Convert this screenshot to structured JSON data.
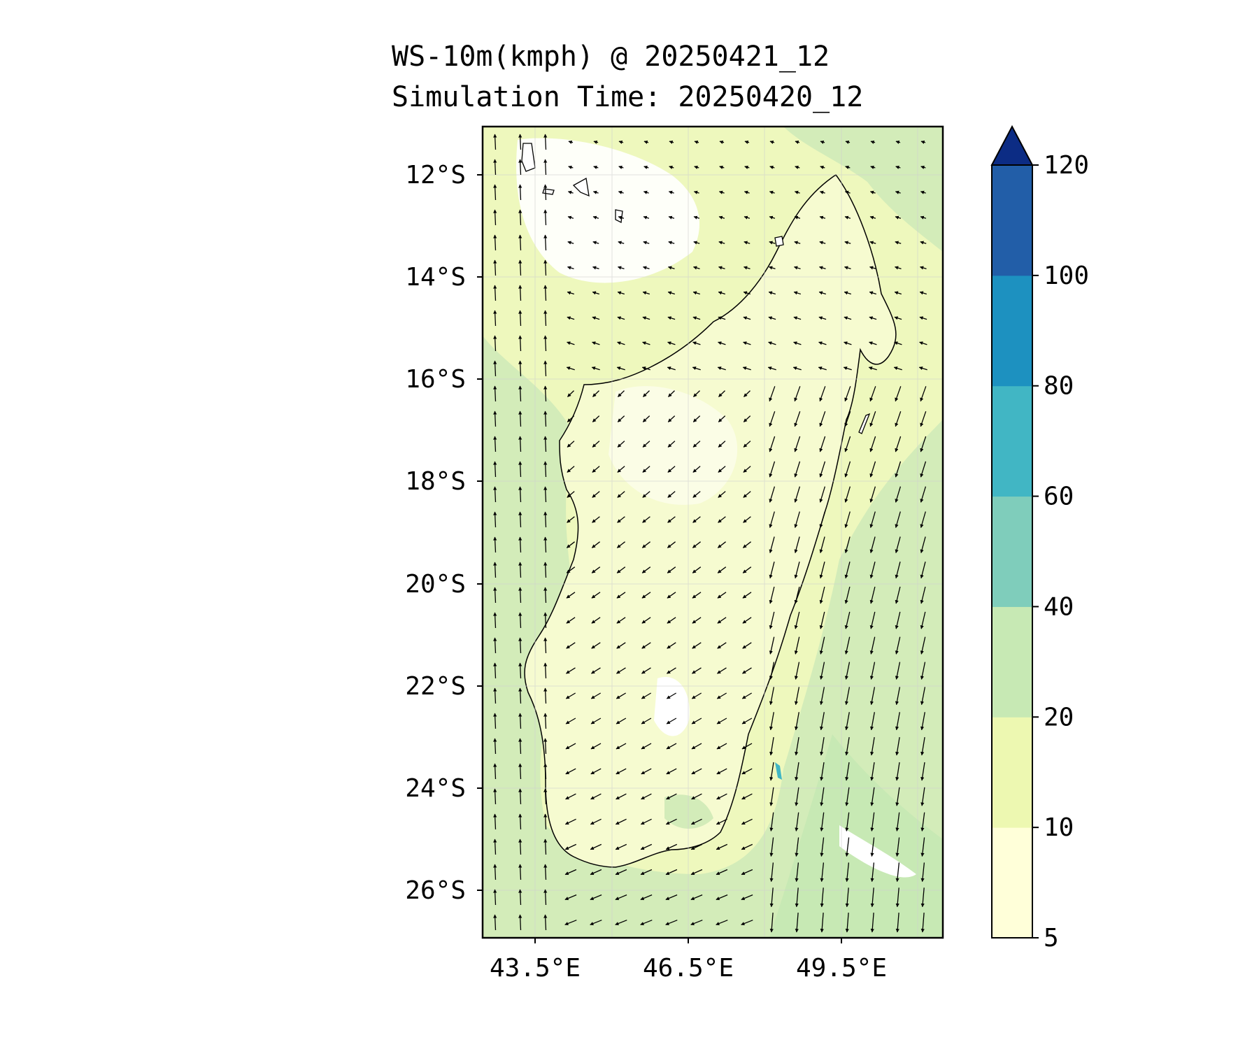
{
  "title_line1": "WS-10m(kmph) @ 20250421_12",
  "title_line2": "Simulation Time: 20250420_12",
  "map": {
    "lat_labels": [
      "12°S",
      "14°S",
      "16°S",
      "18°S",
      "20°S",
      "22°S",
      "24°S",
      "26°S"
    ],
    "lon_labels": [
      "43.5°E",
      "46.5°E",
      "49.5°E"
    ],
    "lat_range": [
      -27.0,
      -11.1
    ],
    "lon_range": [
      42.5,
      51.5
    ],
    "grid": true,
    "wind_vectors": "arrows"
  },
  "colorbar": {
    "levels": [
      5,
      10,
      20,
      40,
      60,
      80,
      100,
      120
    ],
    "tick_labels": [
      "5",
      "10",
      "20",
      "40",
      "60",
      "80",
      "100",
      "120"
    ],
    "colors": [
      "#ffffd9",
      "#edf8b1",
      "#c7e9b4",
      "#7fcdbb",
      "#41b6c4",
      "#1d91c0",
      "#225ea8",
      "#0c2c84"
    ],
    "extend": "max"
  },
  "colors": {
    "ocean_base": "#d3ecb9",
    "land_base": "#f4fbc8",
    "calm": "#ffffff",
    "coastline": "#000000"
  }
}
